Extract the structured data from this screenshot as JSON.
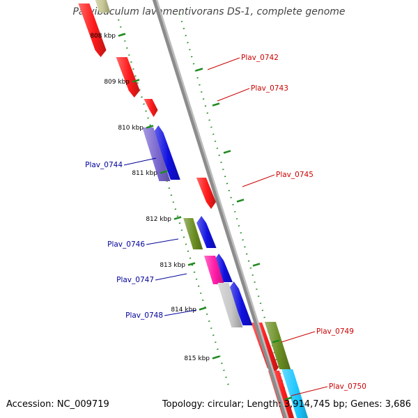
{
  "title": "Parvibaculum lavamentivorans DS-1, complete genome",
  "footer": {
    "accession": "Accession: NC_009719",
    "topology": "Topology: circular; Length: 3,914,745 bp; Genes: 3,686"
  },
  "colors": {
    "backbone": "#8c8c8c",
    "tick": "#228b22",
    "forward_label": "#cc0000",
    "reverse_label": "#000099",
    "red": "#ff1a1a",
    "blue": "#1010e0",
    "purple": "#7b68d0",
    "olive": "#6b8e23",
    "magenta": "#ff1aa6",
    "gray": "#c8c8c8",
    "cyan": "#1ac6ff",
    "tan": "#c8c896"
  },
  "kbp_ticks": [
    "808 kbp",
    "809 kbp",
    "810 kbp",
    "811 kbp",
    "812 kbp",
    "813 kbp",
    "814 kbp",
    "815 kbp"
  ],
  "forward_genes": [
    {
      "label": "Plav_0742",
      "color": "red"
    },
    {
      "label": "Plav_0743",
      "color": "red"
    },
    {
      "label": "Plav_0745",
      "color": "red"
    },
    {
      "label": "Plav_0749",
      "color": "olive"
    },
    {
      "label": "Plav_0750",
      "color": "cyan"
    }
  ],
  "reverse_genes": [
    {
      "label": "Plav_0744",
      "color": "blue"
    },
    {
      "label": "Plav_0746",
      "color": "blue"
    },
    {
      "label": "Plav_0747",
      "color": "blue"
    },
    {
      "label": "Plav_0748",
      "color": "blue"
    }
  ]
}
